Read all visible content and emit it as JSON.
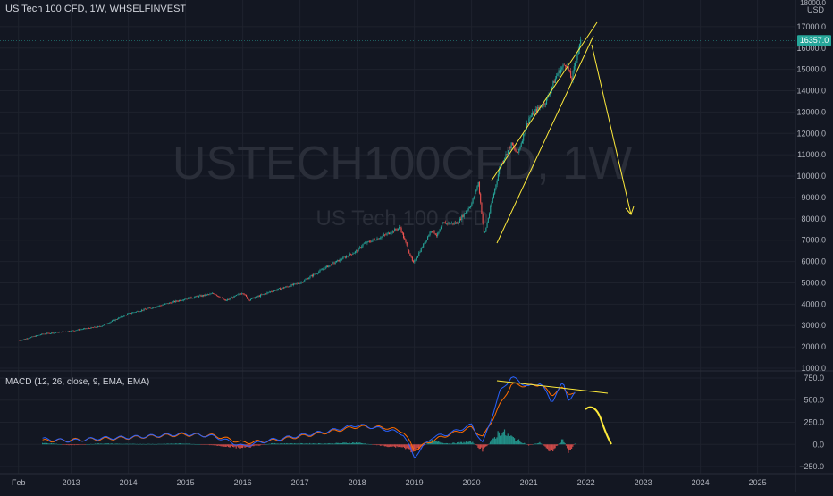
{
  "header": {
    "title": "US Tech 100 CFD, 1W, WHSELFINVEST"
  },
  "watermark": {
    "symbol": "USTECH100CFD, 1W",
    "name": "US Tech 100 CFD"
  },
  "currency": "USD",
  "price_axis": {
    "ticks": [
      "17000.0",
      "16000.0",
      "15000.0",
      "14000.0",
      "13000.0",
      "12000.0",
      "11000.0",
      "10000.0",
      "9000.0",
      "8000.0",
      "7000.0",
      "6000.0",
      "5000.0",
      "4000.0",
      "3000.0",
      "2000.0",
      "1000.0"
    ],
    "top_tick": "18000.0",
    "last_price": "16357.0"
  },
  "time_axis": {
    "ticks": [
      "Feb",
      "2013",
      "2014",
      "2015",
      "2016",
      "2017",
      "2018",
      "2019",
      "2020",
      "2021",
      "2022",
      "2023",
      "2024",
      "2025"
    ]
  },
  "macd": {
    "label": "MACD (12, 26, close, 9, EMA, EMA)",
    "ticks": [
      "750.0",
      "500.0",
      "250.0",
      "0.0",
      "−250.0"
    ]
  },
  "colors": {
    "background": "#131722",
    "up": "#26a69a",
    "down": "#ef5350",
    "macd_line": "#2962ff",
    "signal_line": "#ff6d00",
    "drawing": "#ffeb3b",
    "last_price_label": "#26a69a"
  },
  "chart_data": [
    {
      "type": "candlestick",
      "title": "US Tech 100 CFD, 1W, WHSELFINVEST",
      "x": [
        2012.1,
        2012.5,
        2013.0,
        2013.5,
        2014.0,
        2014.5,
        2015.0,
        2015.5,
        2015.7,
        2016.0,
        2016.1,
        2016.5,
        2017.0,
        2017.5,
        2018.0,
        2018.1,
        2018.5,
        2018.75,
        2018.98,
        2019.3,
        2019.4,
        2019.5,
        2019.75,
        2020.0,
        2020.12,
        2020.22,
        2020.5,
        2020.7,
        2020.8,
        2021.0,
        2021.1,
        2021.3,
        2021.5,
        2021.65,
        2021.75,
        2021.85,
        2021.92
      ],
      "values": [
        2300,
        2600,
        2750,
        2950,
        3550,
        3900,
        4250,
        4500,
        4150,
        4550,
        4200,
        4600,
        5000,
        5800,
        6500,
        6800,
        7250,
        7600,
        5900,
        7500,
        7200,
        7800,
        7800,
        8700,
        9700,
        7200,
        10500,
        11500,
        11000,
        12700,
        13000,
        13500,
        14800,
        15300,
        14500,
        15800,
        16357
      ],
      "ylim": [
        1000,
        18000
      ],
      "xlim": [
        2011.85,
        2025.6
      ],
      "scale": "linear",
      "grid": true
    },
    {
      "type": "line",
      "title": "MACD (12, 26, close, 9, EMA, EMA)",
      "x": [
        2012.5,
        2013.0,
        2013.5,
        2014.0,
        2014.5,
        2015.0,
        2015.5,
        2016.0,
        2016.5,
        2017.0,
        2017.5,
        2018.0,
        2018.5,
        2018.8,
        2019.0,
        2019.3,
        2019.6,
        2020.0,
        2020.2,
        2020.5,
        2020.7,
        2021.0,
        2021.2,
        2021.4,
        2021.6,
        2021.7,
        2021.82
      ],
      "series": [
        {
          "values": [
            60,
            40,
            70,
            80,
            100,
            120,
            90,
            -20,
            50,
            100,
            150,
            220,
            170,
            120,
            -140,
            80,
            120,
            220,
            10,
            600,
            760,
            650,
            700,
            480,
            700,
            500,
            580
          ]
        },
        {
          "values": [
            40,
            50,
            60,
            75,
            95,
            110,
            100,
            20,
            40,
            90,
            140,
            200,
            190,
            150,
            -60,
            40,
            110,
            190,
            80,
            450,
            680,
            660,
            680,
            560,
            640,
            580,
            560
          ]
        }
      ],
      "bar_values": [
        20,
        -10,
        10,
        5,
        5,
        10,
        -10,
        -40,
        10,
        10,
        10,
        20,
        -20,
        -30,
        -80,
        40,
        10,
        30,
        -70,
        150,
        80,
        -10,
        20,
        -80,
        60,
        -80,
        20
      ],
      "ylim": [
        -300,
        800
      ],
      "grid": true
    }
  ]
}
